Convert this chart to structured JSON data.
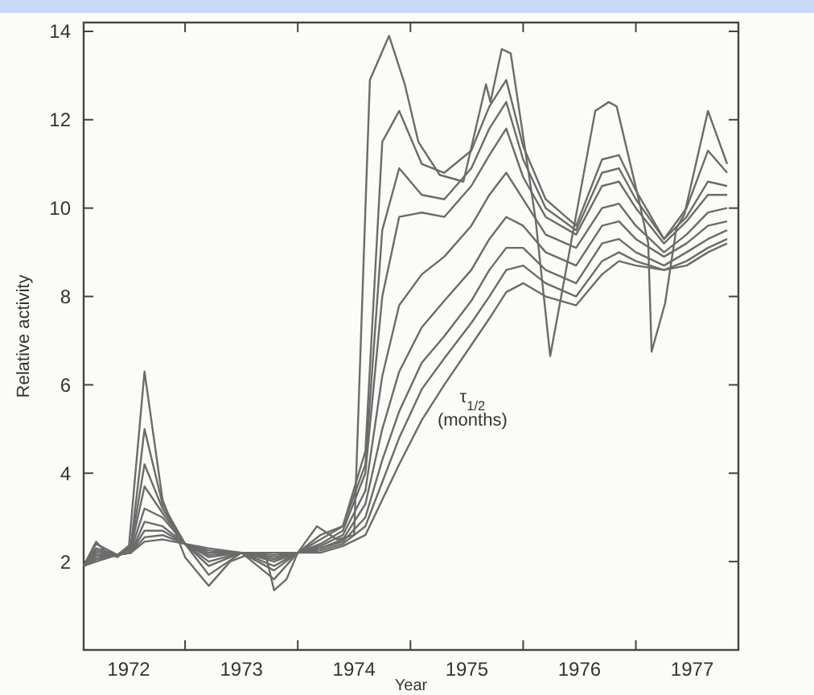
{
  "chart_data": {
    "type": "line",
    "xlabel": "Year",
    "ylabel": "Relative activity",
    "annotations": [
      "τ$_{1/2}$ (months)"
    ],
    "xlim": [
      1972.1,
      1977.91
    ],
    "ylim": [
      0,
      14.2
    ],
    "xticks": [
      {
        "value": 1972.5,
        "label": "1972"
      },
      {
        "value": 1973,
        "label": null
      },
      {
        "value": 1973.5,
        "label": "1973"
      },
      {
        "value": 1974,
        "label": null
      },
      {
        "value": 1974.5,
        "label": "1974"
      },
      {
        "value": 1975,
        "label": null
      },
      {
        "value": 1975.5,
        "label": "1975"
      },
      {
        "value": 1976,
        "label": null
      },
      {
        "value": 1976.5,
        "label": "1976"
      },
      {
        "value": 1977,
        "label": null
      },
      {
        "value": 1977.5,
        "label": "1977"
      }
    ],
    "yticks": [
      2,
      4,
      6,
      8,
      10,
      12,
      14
    ],
    "grid": false,
    "marker": "none",
    "line_style": "solid",
    "x": [
      1972.1,
      1972.21,
      1972.4,
      1972.52,
      1972.64,
      1972.8,
      1973.0,
      1973.21,
      1973.5,
      1973.79,
      1974.0,
      1974.2,
      1974.4,
      1974.6,
      1974.75,
      1974.9,
      1975.1,
      1975.3,
      1975.54,
      1975.7,
      1975.85,
      1976.0,
      1976.2,
      1976.47,
      1976.7,
      1976.85,
      1977.0,
      1977.25,
      1977.45,
      1977.64,
      1977.81
    ],
    "series": [
      {
        "color": "#6b6b6b",
        "x": [
          1972.1,
          1972.21,
          1972.3,
          1972.4,
          1972.5,
          1972.64,
          1972.8,
          1973.0,
          1973.21,
          1973.4,
          1973.6,
          1973.72,
          1973.79,
          1973.9,
          1974.0,
          1974.17,
          1974.35,
          1974.5,
          1974.64,
          1974.81,
          1974.95,
          1975.07,
          1975.26,
          1975.47,
          1975.67,
          1975.71,
          1975.81,
          1975.89,
          1976.11,
          1976.24,
          1976.64,
          1976.76,
          1976.83,
          1977.03,
          1977.11,
          1977.14,
          1977.26,
          1977.36,
          1977.43,
          1977.64,
          1977.81
        ],
        "values": [
          1.9,
          2.45,
          2.2,
          2.1,
          2.3,
          6.3,
          3.4,
          2.1,
          1.45,
          2.0,
          2.2,
          2.1,
          1.35,
          1.6,
          2.2,
          2.8,
          2.5,
          2.6,
          12.9,
          13.9,
          12.8,
          11.5,
          10.75,
          10.6,
          12.8,
          12.4,
          13.6,
          13.5,
          9.75,
          6.65,
          12.2,
          12.4,
          12.3,
          10.15,
          9.2,
          6.75,
          7.85,
          9.55,
          9.85,
          12.2,
          11.0
        ]
      },
      {
        "color": "#6b6b6b",
        "values": [
          1.9,
          2.4,
          2.15,
          2.4,
          5.0,
          3.3,
          2.4,
          1.7,
          2.2,
          1.6,
          2.2,
          2.6,
          2.8,
          4.5,
          11.5,
          12.2,
          11.0,
          10.8,
          11.3,
          12.3,
          12.9,
          11.4,
          10.2,
          9.6,
          11.1,
          11.2,
          10.4,
          9.3,
          10.0,
          11.3,
          10.8
        ]
      },
      {
        "color": "#6b6b6b",
        "values": [
          1.9,
          2.3,
          2.15,
          2.35,
          4.2,
          3.2,
          2.4,
          1.9,
          2.2,
          1.8,
          2.2,
          2.5,
          2.8,
          4.2,
          9.5,
          10.9,
          10.3,
          10.2,
          10.9,
          11.8,
          12.4,
          11.1,
          10.0,
          9.5,
          10.8,
          10.9,
          10.2,
          9.3,
          9.8,
          10.6,
          10.5
        ]
      },
      {
        "color": "#6b6b6b",
        "values": [
          1.9,
          2.25,
          2.15,
          2.3,
          3.7,
          3.1,
          2.4,
          2.0,
          2.2,
          1.9,
          2.2,
          2.4,
          2.7,
          4.0,
          8.0,
          9.8,
          9.9,
          9.8,
          10.5,
          11.2,
          11.8,
          10.7,
          9.8,
          9.4,
          10.5,
          10.6,
          10.0,
          9.2,
          9.7,
          10.3,
          10.3
        ]
      },
      {
        "color": "#6b6b6b",
        "values": [
          1.9,
          2.2,
          2.15,
          2.25,
          3.2,
          3.0,
          2.4,
          2.1,
          2.2,
          2.0,
          2.2,
          2.35,
          2.6,
          3.6,
          6.2,
          7.8,
          8.5,
          8.9,
          9.6,
          10.3,
          10.8,
          10.2,
          9.4,
          9.1,
          10.0,
          10.1,
          9.6,
          9.0,
          9.4,
          9.9,
          10.0
        ]
      },
      {
        "color": "#6b6b6b",
        "values": [
          1.9,
          2.15,
          2.15,
          2.2,
          2.9,
          2.8,
          2.4,
          2.15,
          2.2,
          2.05,
          2.2,
          2.3,
          2.5,
          3.3,
          5.0,
          6.3,
          7.3,
          7.9,
          8.6,
          9.3,
          9.8,
          9.6,
          9.0,
          8.7,
          9.6,
          9.7,
          9.3,
          8.9,
          9.2,
          9.6,
          9.7
        ]
      },
      {
        "color": "#6b6b6b",
        "values": [
          1.9,
          2.1,
          2.15,
          2.2,
          2.7,
          2.7,
          2.4,
          2.2,
          2.2,
          2.1,
          2.2,
          2.3,
          2.45,
          3.0,
          4.3,
          5.4,
          6.5,
          7.1,
          7.9,
          8.6,
          9.1,
          9.1,
          8.6,
          8.3,
          9.2,
          9.3,
          9.0,
          8.7,
          9.0,
          9.3,
          9.5
        ]
      },
      {
        "color": "#6b6b6b",
        "values": [
          1.9,
          2.05,
          2.15,
          2.2,
          2.55,
          2.6,
          2.4,
          2.25,
          2.2,
          2.15,
          2.2,
          2.25,
          2.4,
          2.8,
          3.8,
          4.8,
          5.9,
          6.6,
          7.4,
          8.0,
          8.6,
          8.7,
          8.3,
          8.0,
          8.8,
          9.0,
          8.8,
          8.6,
          8.8,
          9.1,
          9.3
        ]
      },
      {
        "color": "#6b6b6b",
        "values": [
          1.9,
          2.0,
          2.15,
          2.2,
          2.45,
          2.5,
          2.4,
          2.3,
          2.2,
          2.2,
          2.2,
          2.2,
          2.35,
          2.6,
          3.4,
          4.2,
          5.2,
          6.0,
          6.9,
          7.5,
          8.1,
          8.3,
          8.0,
          7.8,
          8.5,
          8.8,
          8.7,
          8.6,
          8.7,
          9.0,
          9.2
        ]
      }
    ]
  }
}
